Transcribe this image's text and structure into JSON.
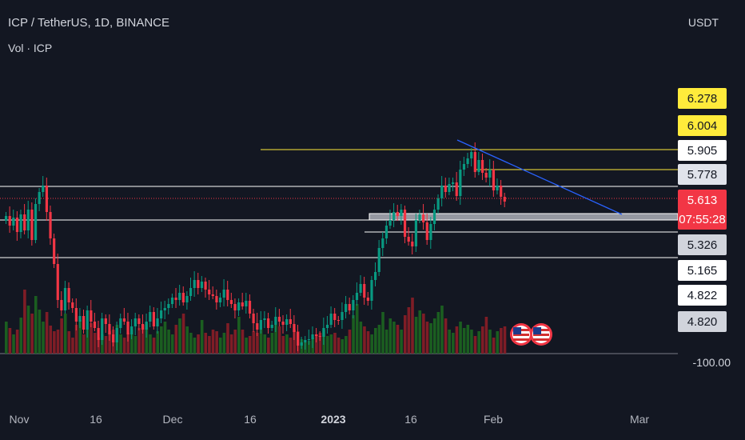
{
  "header": {
    "title": "ICP / TetherUS, 1D, BINANCE",
    "volume_label": "Vol · ICP",
    "currency": "USDT"
  },
  "price_labels": [
    {
      "text": "6.278",
      "bg": "#ffeb3b",
      "fg": "#131722"
    },
    {
      "text": "6.004",
      "bg": "#ffeb3b",
      "fg": "#131722"
    },
    {
      "text": "5.905",
      "bg": "#ffffff",
      "fg": "#131722"
    },
    {
      "text": "5.778",
      "bg": "#e0e3eb",
      "fg": "#131722"
    },
    {
      "text": "5.613",
      "bg": "#f23645",
      "fg": "#ffffff"
    },
    {
      "text": "07:55:28",
      "bg": "#f23645",
      "fg": "#ffffff"
    },
    {
      "text": "5.326",
      "bg": "#d1d4dc",
      "fg": "#131722"
    },
    {
      "text": "5.165",
      "bg": "#ffffff",
      "fg": "#131722"
    },
    {
      "text": "4.822",
      "bg": "#ffffff",
      "fg": "#131722"
    },
    {
      "text": "4.820",
      "bg": "#d1d4dc",
      "fg": "#131722"
    }
  ],
  "y_tick": "-100.00",
  "x_ticks": [
    {
      "label": "Nov",
      "bold": false
    },
    {
      "label": "16",
      "bold": false
    },
    {
      "label": "Dec",
      "bold": false
    },
    {
      "label": "16",
      "bold": false
    },
    {
      "label": "2023",
      "bold": true
    },
    {
      "label": "16",
      "bold": false
    },
    {
      "label": "Feb",
      "bold": false
    },
    {
      "label": "Mar",
      "bold": false
    }
  ],
  "colors": {
    "background": "#131722",
    "up": "#089981",
    "down": "#f23645",
    "volume_up": "#1b5e20",
    "volume_down": "#7f1d26",
    "trendline": "#2962ff",
    "level_yellow": "#ffeb3b",
    "level_white": "#ffffff",
    "zone_gray": "#9598a1"
  },
  "event_icons": [
    "us-flag-icon",
    "us-flag-icon"
  ],
  "chart_data": {
    "type": "candlestick",
    "symbol": "ICP / TetherUS",
    "interval": "1D",
    "exchange": "BINANCE",
    "last_price": 5.613,
    "countdown": "07:55:28",
    "horizontal_levels": [
      5.905,
      5.778,
      5.326,
      5.165,
      4.822
    ],
    "x_labels": [
      "Nov",
      "16",
      "Dec",
      "16",
      "2023",
      "16",
      "Feb",
      "Mar"
    ]
  }
}
